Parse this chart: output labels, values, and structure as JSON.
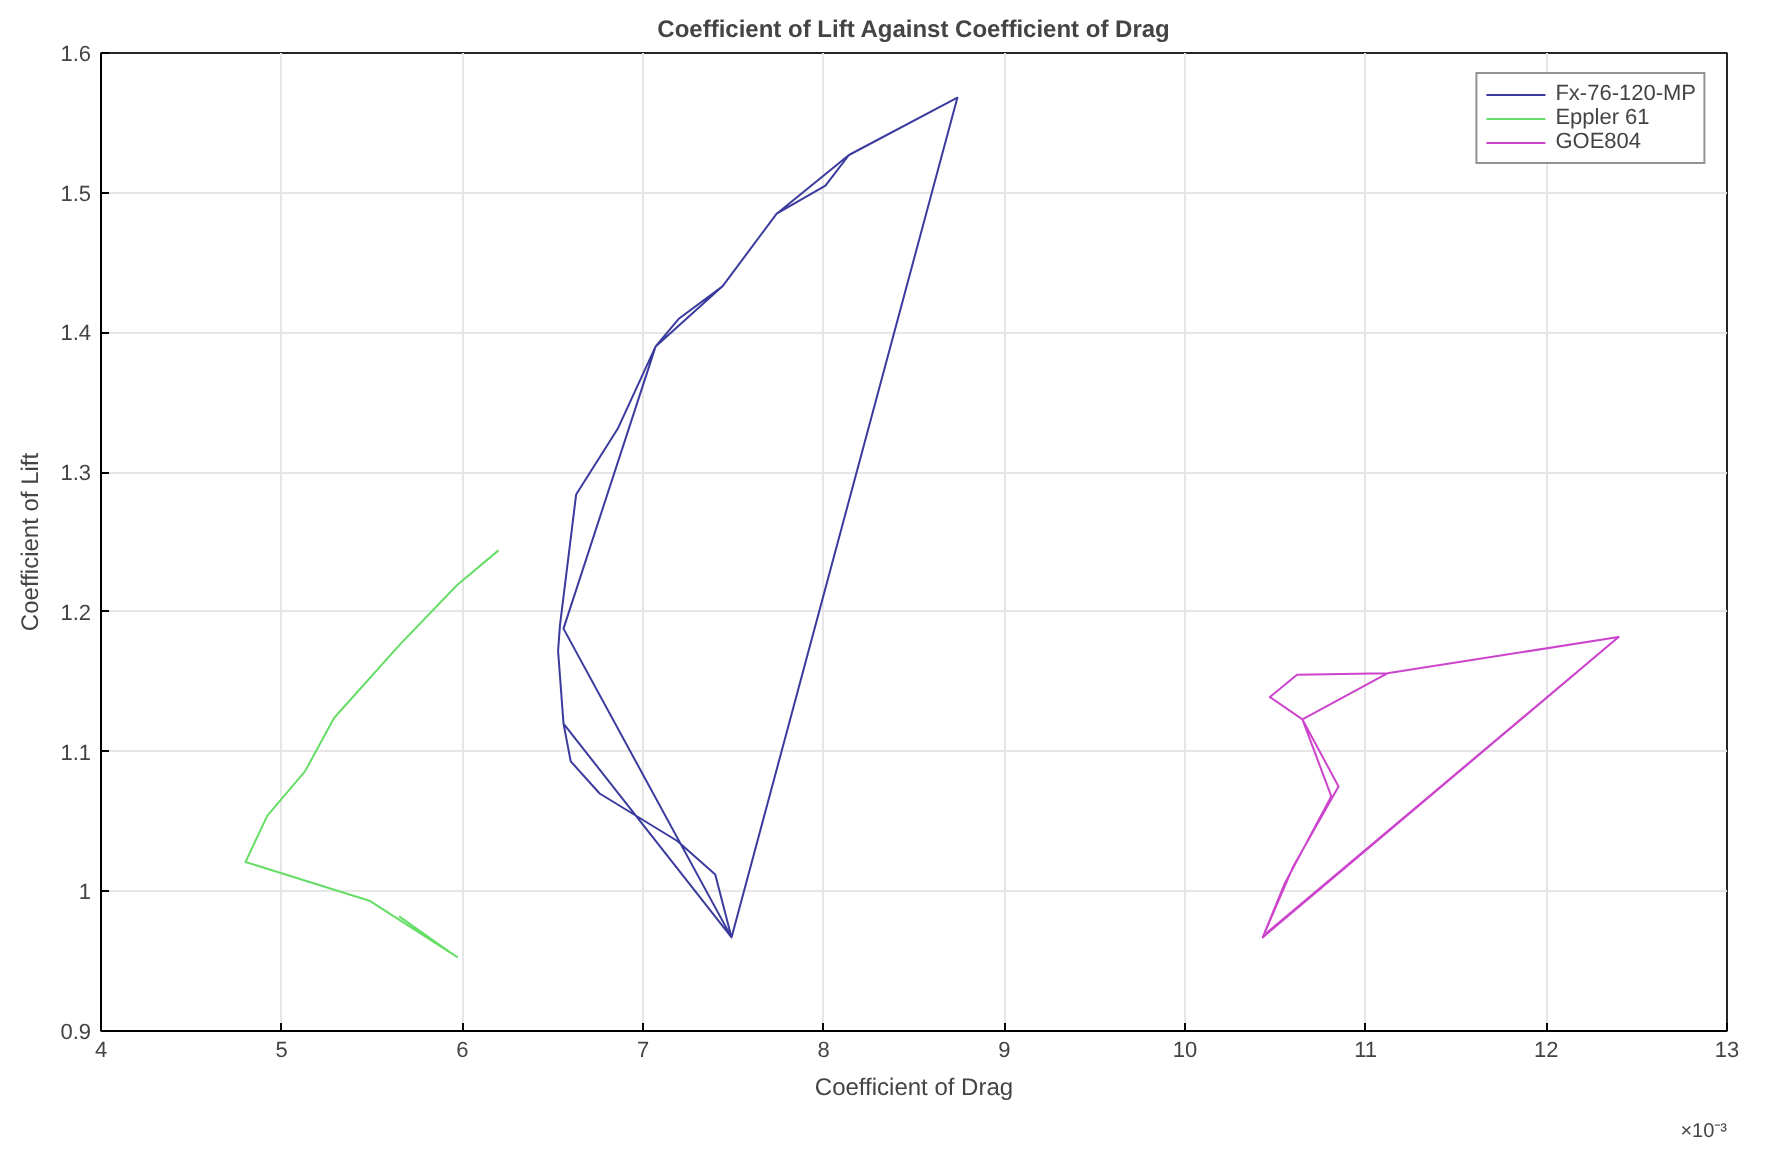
{
  "chart_data": {
    "type": "line",
    "title": "Coefficient of Lift Against Coefficient of Drag",
    "xlabel": "Coefficient of Drag",
    "ylabel": "Coefficient of Lift",
    "xlim": [
      4,
      13
    ],
    "ylim": [
      0.9,
      1.6
    ],
    "xticks": [
      4,
      5,
      6,
      7,
      8,
      9,
      10,
      11,
      12,
      13
    ],
    "yticks": [
      0.9,
      1,
      1.1,
      1.2,
      1.3,
      1.4,
      1.5,
      1.6
    ],
    "annotations": [
      "×10⁻³"
    ],
    "grid": true,
    "legend": "top right",
    "marker": "none",
    "line_style": "solid",
    "series": [
      {
        "name": "Fx-76-120-MP",
        "color": "#3b3b9e",
        "x": [
          7.49,
          8.74,
          8.14,
          7.74,
          7.44,
          7.07,
          6.86,
          6.63,
          6.54,
          6.53,
          6.56,
          6.6,
          6.76,
          7.19,
          7.4,
          7.49,
          6.56,
          7.07,
          7.2,
          7.44,
          7.74,
          8.01,
          8.14,
          8.74,
          7.49,
          6.56
        ],
        "values": [
          0.967,
          1.568,
          1.527,
          1.485,
          1.433,
          1.39,
          1.331,
          1.284,
          1.19,
          1.172,
          1.12,
          1.093,
          1.07,
          1.036,
          1.012,
          0.967,
          1.188,
          1.39,
          1.41,
          1.433,
          1.485,
          1.505,
          1.527,
          1.568,
          0.967,
          1.12
        ]
      },
      {
        "name": "Eppler 61",
        "color": "#66dd66",
        "x": [
          6.2,
          5.97,
          5.65,
          5.29,
          5.13,
          4.92,
          4.8,
          5.49,
          5.97,
          5.65
        ],
        "values": [
          1.244,
          1.219,
          1.176,
          1.124,
          1.086,
          1.054,
          1.021,
          0.993,
          0.953,
          0.982
        ]
      },
      {
        "name": "GOE804",
        "color": "#cc44cc",
        "x": [
          10.43,
          12.4,
          11.12,
          10.62,
          10.47,
          10.65,
          10.85,
          10.6,
          10.43,
          10.55,
          10.81,
          10.65,
          11.12,
          12.4,
          10.45
        ],
        "values": [
          0.967,
          1.182,
          1.156,
          1.155,
          1.139,
          1.123,
          1.075,
          1.018,
          0.967,
          1.005,
          1.068,
          1.123,
          1.156,
          1.182,
          0.97
        ]
      }
    ]
  }
}
